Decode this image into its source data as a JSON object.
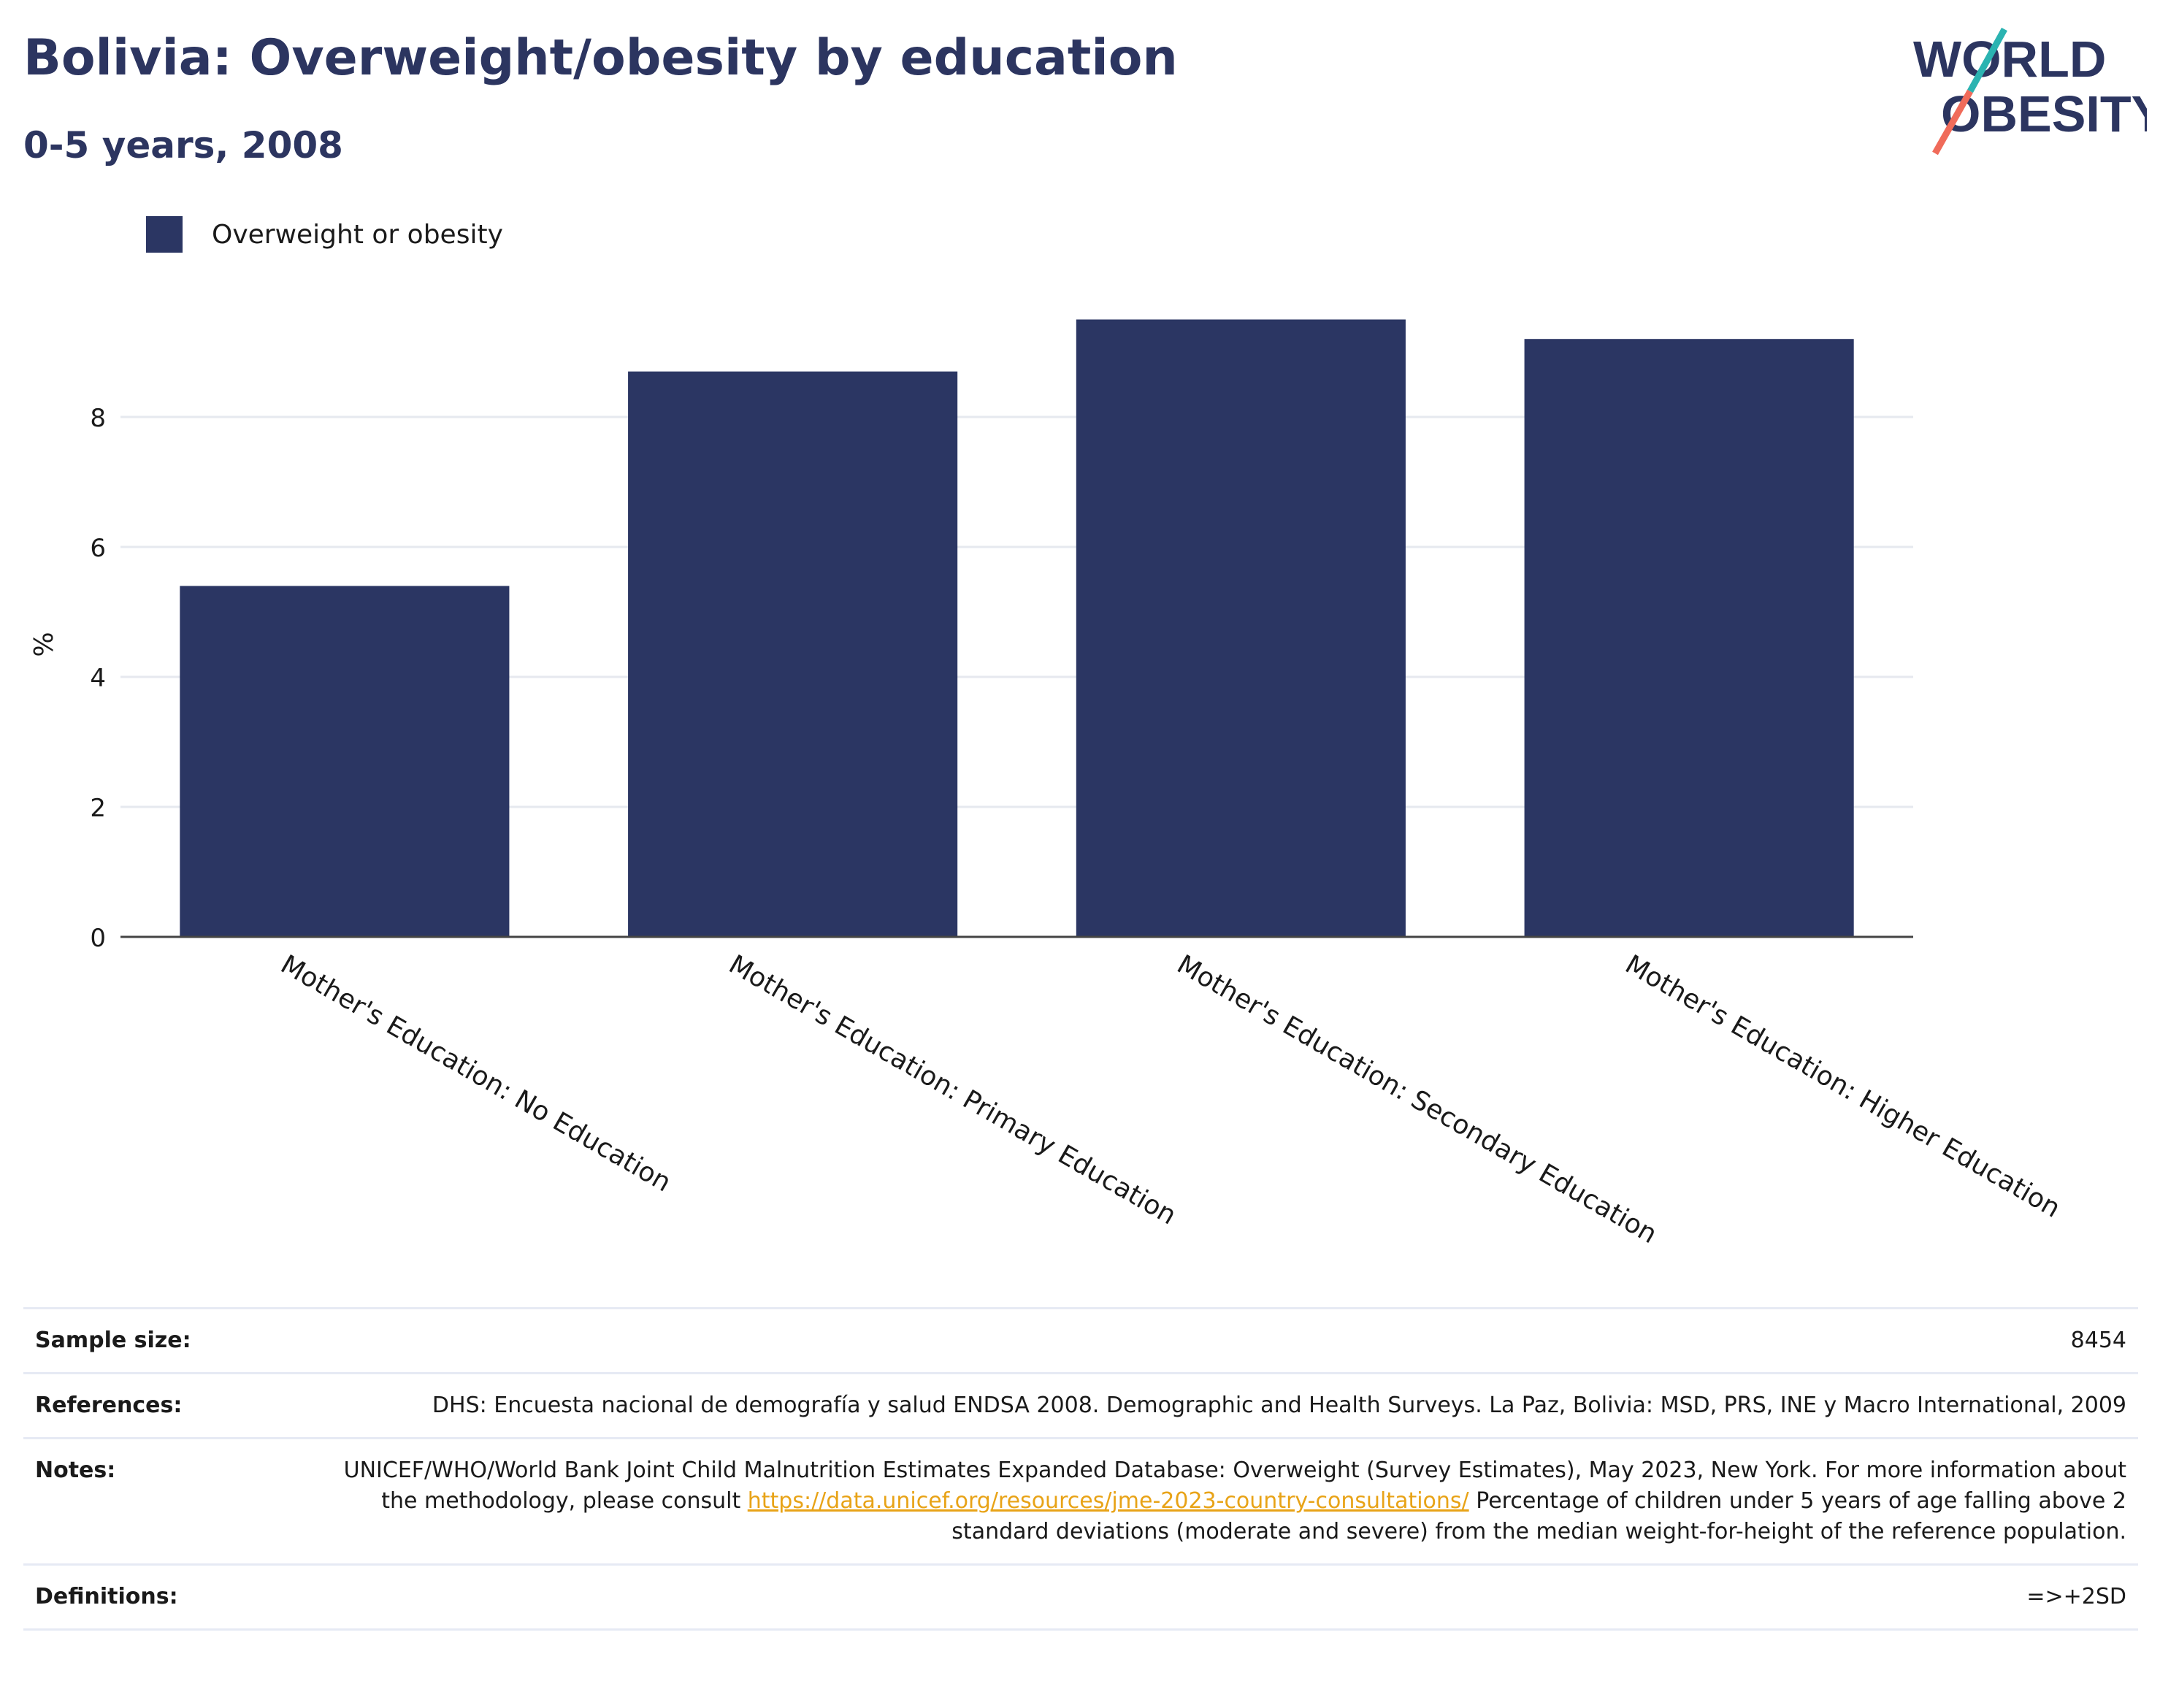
{
  "header": {
    "title": "Bolivia: Overweight/obesity by education",
    "subtitle": "0-5 years, 2008"
  },
  "logo": {
    "line1": "WORLD",
    "line2": "OBESITY",
    "colors": {
      "text": "#2c3560",
      "slash_top": "#2bb3b1",
      "slash_bottom": "#f06b5a"
    }
  },
  "legend": {
    "items": [
      {
        "label": "Overweight or obesity",
        "color": "#2b3663"
      }
    ]
  },
  "chart_data": {
    "type": "bar",
    "categories": [
      "Mother's Education: No Education",
      "Mother's Education: Primary Education",
      "Mother's Education: Secondary Education",
      "Mother's Education: Higher Education"
    ],
    "series": [
      {
        "name": "Overweight or obesity",
        "values": [
          5.4,
          8.7,
          9.5,
          9.2
        ]
      }
    ],
    "ylabel": "%",
    "xlabel": "",
    "yticks": [
      0,
      2,
      4,
      6,
      8
    ],
    "ylim": [
      0,
      10
    ],
    "grid": true,
    "legend_position": "top-left",
    "bar_color": "#2b3663"
  },
  "info": {
    "sample_size_label": "Sample size:",
    "sample_size_value": "8454",
    "references_label": "References:",
    "references_value": "DHS: Encuesta nacional de demografía y salud ENDSA 2008. Demographic and Health Surveys. La Paz, Bolivia: MSD, PRS, INE y Macro International, 2009",
    "notes_label": "Notes:",
    "notes_text_1": "UNICEF/WHO/World Bank Joint Child Malnutrition Estimates Expanded Database: Overweight (Survey Estimates), May 2023, New York. For more information about the methodology, please consult ",
    "notes_link": "https://data.unicef.org/resources/jme-2023-country-consultations/",
    "notes_text_2": " Percentage of children under 5 years of age falling above 2 standard deviations (moderate and severe) from the median weight-for-height of the reference population.",
    "definitions_label": "Definitions:",
    "definitions_value": "=>+2SD"
  }
}
